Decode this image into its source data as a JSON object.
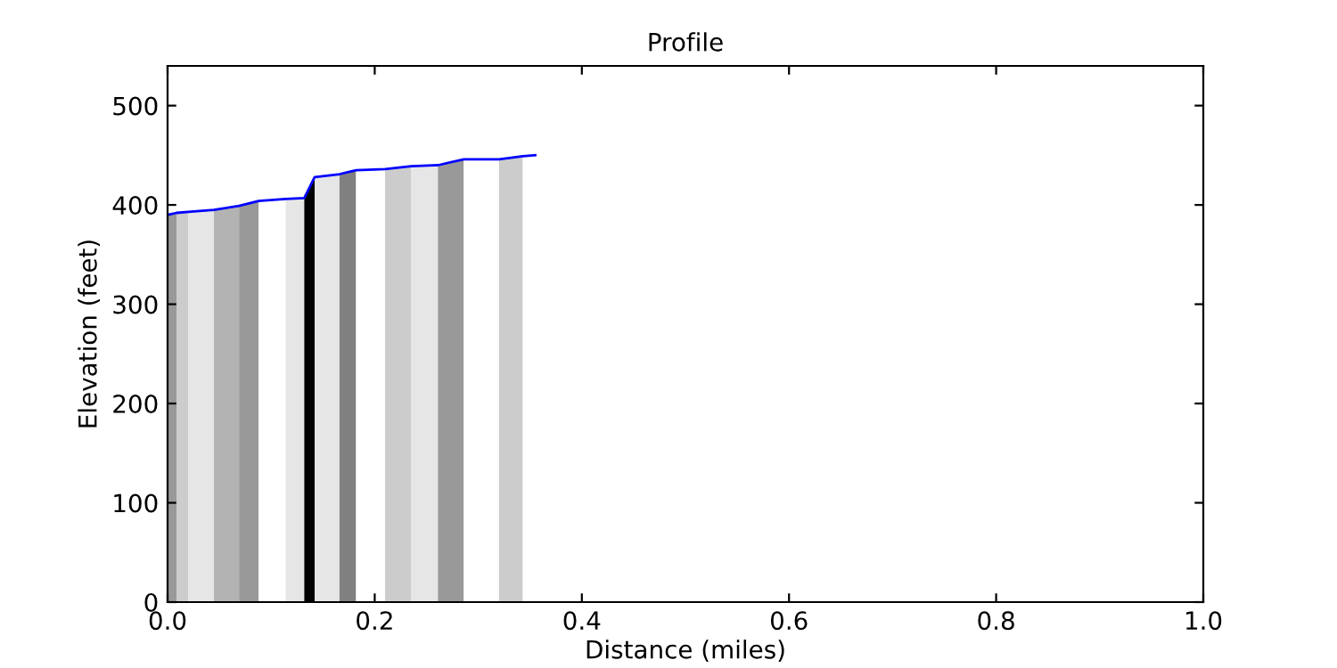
{
  "chart_data": {
    "type": "area",
    "title": "Profile",
    "xlabel": "Distance (miles)",
    "ylabel": "Elevation (feet)",
    "series": [
      {
        "color": "#999999",
        "x": [
          0,
          0.0086
        ],
        "values": [
          390,
          392
        ]
      },
      {
        "color": "#cccccc",
        "x": [
          0.0086,
          0.02
        ],
        "values": [
          392,
          393
        ]
      },
      {
        "color": "#e6e6e6",
        "x": [
          0.02,
          0.0448
        ],
        "values": [
          393,
          395
        ]
      },
      {
        "color": "#b3b3b3",
        "x": [
          0.0448,
          0.069
        ],
        "values": [
          395,
          399
        ]
      },
      {
        "color": "#999999",
        "x": [
          0.069,
          0.088
        ],
        "values": [
          399,
          404
        ]
      },
      {
        "color": "#ffffff",
        "x": [
          0.088,
          0.114
        ],
        "values": [
          404,
          406
        ]
      },
      {
        "color": "#e6e6e6",
        "x": [
          0.114,
          0.132
        ],
        "values": [
          406,
          407
        ]
      },
      {
        "color": "#000000",
        "x": [
          0.132,
          0.142
        ],
        "values": [
          407,
          428
        ]
      },
      {
        "color": "#e6e6e6",
        "x": [
          0.142,
          0.166
        ],
        "values": [
          428,
          431
        ]
      },
      {
        "color": "#808080",
        "x": [
          0.166,
          0.182
        ],
        "values": [
          431,
          435
        ]
      },
      {
        "color": "#ffffff",
        "x": [
          0.182,
          0.21
        ],
        "values": [
          435,
          436
        ]
      },
      {
        "color": "#cccccc",
        "x": [
          0.21,
          0.235
        ],
        "values": [
          436,
          439
        ]
      },
      {
        "color": "#e6e6e6",
        "x": [
          0.235,
          0.261
        ],
        "values": [
          439,
          440
        ]
      },
      {
        "color": "#999999",
        "x": [
          0.261,
          0.286
        ],
        "values": [
          440,
          446
        ]
      },
      {
        "color": "#ffffff",
        "x": [
          0.286,
          0.32
        ],
        "values": [
          446,
          446
        ]
      },
      {
        "color": "#cccccc",
        "x": [
          0.32,
          0.343
        ],
        "values": [
          446,
          449
        ]
      },
      {
        "color": "#ffffff",
        "x": [
          0.343,
          0.355
        ],
        "values": [
          449,
          450
        ]
      },
      {
        "type": "line",
        "color": "#0000ff",
        "x": [
          0,
          0.0086,
          0.02,
          0.0448,
          0.069,
          0.088,
          0.114,
          0.132,
          0.142,
          0.166,
          0.182,
          0.21,
          0.235,
          0.261,
          0.286,
          0.32,
          0.343,
          0.355
        ],
        "values": [
          390,
          392,
          393,
          395,
          399,
          404,
          406,
          407,
          428,
          431,
          435,
          436,
          439,
          440,
          446,
          446,
          449,
          450
        ]
      }
    ],
    "xlim": [
      0,
      1
    ],
    "xticks": [
      {
        "value": 0,
        "label": "0.0"
      },
      0.2,
      0.4,
      0.6,
      0.8,
      {
        "value": 1,
        "label": "1.0"
      }
    ],
    "ylim": [
      0,
      540
    ],
    "yticks": [
      0,
      100,
      200,
      300,
      400,
      500
    ],
    "grid": false,
    "legend": false
  }
}
